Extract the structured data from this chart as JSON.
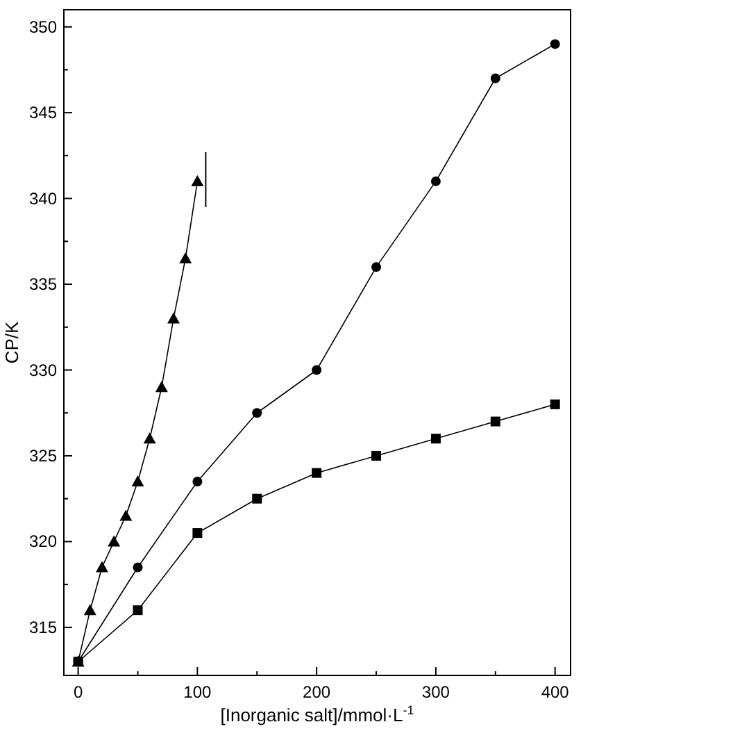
{
  "chart_data": {
    "type": "line",
    "xlabel": "[Inorganic salt]/mmol·L$^{-1}$",
    "ylabel": "CP/K",
    "xlim": [
      -12,
      413
    ],
    "xticks": [
      0,
      100,
      200,
      300,
      400
    ],
    "ylim": [
      312.2,
      351
    ],
    "yticks": [
      315,
      320,
      325,
      330,
      335,
      340,
      345,
      350
    ],
    "grid": false,
    "series": [
      {
        "color": "#000000",
        "marker": "circle",
        "x": [
          0,
          50,
          100,
          150,
          200,
          250,
          300,
          350,
          400
        ],
        "values": [
          313,
          318.5,
          323.5,
          327.5,
          330,
          336,
          341,
          347,
          349
        ]
      },
      {
        "color": "#000000",
        "marker": "square",
        "x": [
          0,
          50,
          100,
          150,
          200,
          250,
          300,
          350,
          400
        ],
        "values": [
          313,
          316,
          320.5,
          322.5,
          324,
          325,
          326,
          327,
          328
        ]
      },
      {
        "color": "#000000",
        "marker": "triangle",
        "x": [
          0,
          10,
          20,
          30,
          40,
          50,
          60,
          70,
          80,
          90,
          100
        ],
        "values": [
          313,
          316,
          318.5,
          320,
          321.5,
          323.5,
          326,
          329,
          333,
          336.5,
          341
        ]
      }
    ]
  }
}
